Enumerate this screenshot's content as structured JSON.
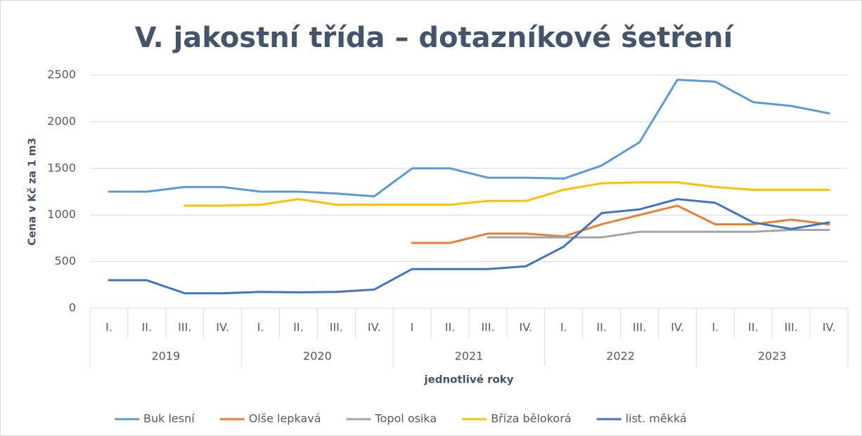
{
  "chart_data": {
    "type": "line",
    "title": "V. jakostní třída – dotazníkové šetření",
    "y_label": "Cena v Kč za 1 m3",
    "x_label": "jednotlivé roky",
    "categories": [
      "I.",
      "II.",
      "III.",
      "IV.",
      "I.",
      "II.",
      "III.",
      "IV.",
      "I",
      "II.",
      "III.",
      "IV.",
      "I.",
      "II.",
      "III.",
      "IV.",
      "I.",
      "II.",
      "III.",
      "IV."
    ],
    "groups": [
      "2019",
      "2020",
      "2021",
      "2022",
      "2023"
    ],
    "ylim": [
      0,
      2500
    ],
    "yticks": [
      0,
      500,
      1000,
      1500,
      2000,
      2500
    ],
    "grid": true,
    "legend": "bottom",
    "series": [
      {
        "name": "Buk lesní",
        "color": "#5b9bd5",
        "values": [
          1250,
          1250,
          1300,
          1300,
          1250,
          1250,
          1230,
          1200,
          1500,
          1500,
          1400,
          1400,
          1390,
          1530,
          1780,
          2450,
          2430,
          2210,
          2170,
          2090
        ]
      },
      {
        "name": "Olše lepkavá",
        "color": "#ed7d31",
        "values": [
          null,
          null,
          null,
          null,
          null,
          null,
          null,
          null,
          700,
          700,
          800,
          800,
          770,
          900,
          1000,
          1100,
          900,
          900,
          950,
          900
        ]
      },
      {
        "name": "Topol osika",
        "color": "#a5a5a5",
        "values": [
          null,
          null,
          null,
          null,
          null,
          null,
          null,
          null,
          null,
          null,
          760,
          760,
          760,
          760,
          820,
          820,
          820,
          820,
          840,
          840
        ]
      },
      {
        "name": "Bříza bělokorá",
        "color": "#ffc000",
        "values": [
          null,
          null,
          1100,
          1100,
          1110,
          1170,
          1110,
          1110,
          1110,
          1110,
          1150,
          1150,
          1270,
          1340,
          1350,
          1350,
          1300,
          1270,
          1270,
          1270
        ]
      },
      {
        "name": "list. měkká",
        "color": "#4472c4",
        "values": [
          300,
          300,
          160,
          160,
          175,
          170,
          175,
          200,
          420,
          420,
          420,
          450,
          660,
          1020,
          1060,
          1170,
          1130,
          920,
          850,
          920
        ]
      }
    ]
  }
}
